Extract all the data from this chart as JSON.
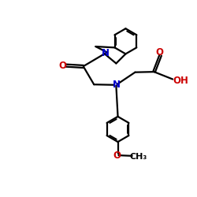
{
  "bg": "#ffffff",
  "bc": "#000000",
  "nc": "#0000cc",
  "oc": "#cc0000",
  "lw": 1.6,
  "figsize": [
    2.5,
    2.5
  ],
  "dpi": 100,
  "xlim": [
    0.0,
    10.0
  ],
  "ylim": [
    -7.5,
    5.5
  ]
}
